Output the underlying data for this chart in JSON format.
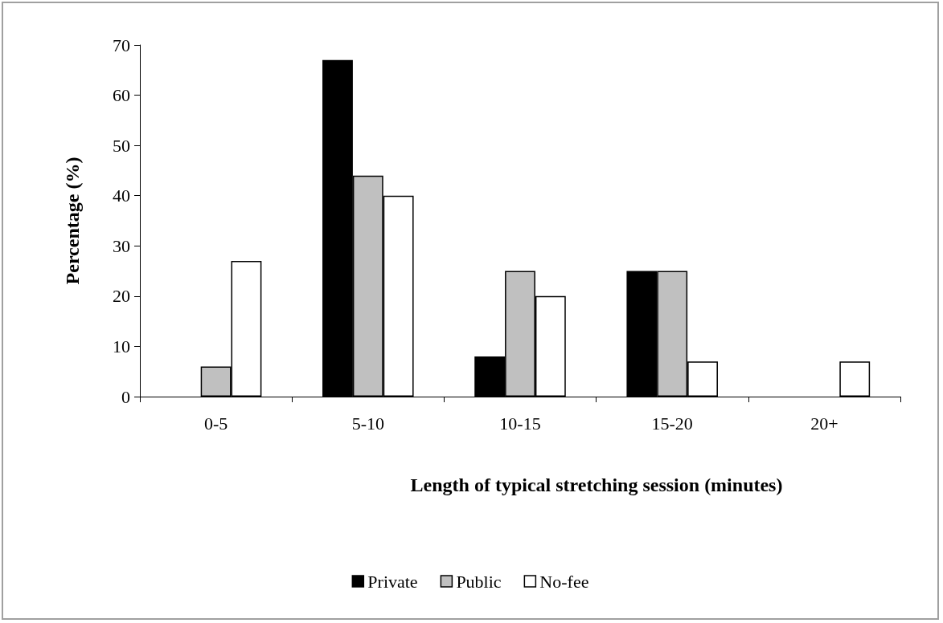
{
  "chart_data": {
    "type": "bar",
    "xlabel": "Length of typical stretching session (minutes)",
    "ylabel": "Percentage (%)",
    "categories": [
      "0-5",
      "5-10",
      "10-15",
      "15-20",
      "20+"
    ],
    "series": [
      {
        "name": "Private",
        "color": "#000000",
        "values": [
          0,
          67,
          8,
          25,
          0
        ]
      },
      {
        "name": "Public",
        "color": "#c0c0c0",
        "values": [
          6,
          44,
          25,
          25,
          0
        ]
      },
      {
        "name": "No-fee",
        "color": "#ffffff",
        "values": [
          27,
          40,
          20,
          7,
          7
        ]
      }
    ],
    "ylim": [
      0,
      70
    ],
    "yticks": [
      0,
      10,
      20,
      30,
      40,
      50,
      60,
      70
    ],
    "grid": false,
    "legend": "bottom"
  }
}
